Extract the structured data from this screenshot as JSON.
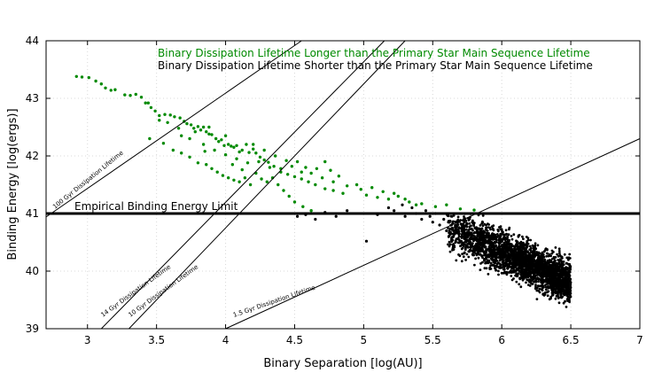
{
  "chart_data": {
    "type": "scatter",
    "title": "",
    "xlabel": "Binary Separation [log(AU)]",
    "ylabel": "Binding Energy [log(ergs)]",
    "xlim": [
      2.7,
      7
    ],
    "ylim": [
      39,
      44
    ],
    "xticks": [
      "3",
      "3.5",
      "4",
      "4.5",
      "5",
      "5.5",
      "6",
      "6.5",
      "7"
    ],
    "yticks": [
      "39",
      "40",
      "41",
      "42",
      "43",
      "44"
    ],
    "grid": true,
    "legend_position": "top",
    "series": [
      {
        "name": "Binary Dissipation Lifetime Longer than the Primary Star Main Sequence Lifetime",
        "color": "#008a00",
        "points": [
          [
            2.92,
            43.38
          ],
          [
            2.96,
            43.37
          ],
          [
            3.01,
            43.36
          ],
          [
            3.06,
            43.3
          ],
          [
            3.1,
            43.25
          ],
          [
            3.13,
            43.18
          ],
          [
            3.17,
            43.14
          ],
          [
            3.2,
            43.15
          ],
          [
            3.27,
            43.06
          ],
          [
            3.31,
            43.05
          ],
          [
            3.35,
            43.07
          ],
          [
            3.39,
            43.02
          ],
          [
            3.42,
            42.92
          ],
          [
            3.44,
            42.92
          ],
          [
            3.46,
            42.84
          ],
          [
            3.49,
            42.78
          ],
          [
            3.52,
            42.7
          ],
          [
            3.56,
            42.72
          ],
          [
            3.6,
            42.71
          ],
          [
            3.63,
            42.68
          ],
          [
            3.67,
            42.66
          ],
          [
            3.7,
            42.6
          ],
          [
            3.72,
            42.56
          ],
          [
            3.75,
            42.54
          ],
          [
            3.77,
            42.48
          ],
          [
            3.8,
            42.51
          ],
          [
            3.82,
            42.45
          ],
          [
            3.84,
            42.5
          ],
          [
            3.86,
            42.42
          ],
          [
            3.88,
            42.38
          ],
          [
            3.9,
            42.37
          ],
          [
            3.93,
            42.3
          ],
          [
            3.95,
            42.25
          ],
          [
            3.97,
            42.28
          ],
          [
            3.99,
            42.18
          ],
          [
            4.02,
            42.2
          ],
          [
            4.04,
            42.17
          ],
          [
            4.06,
            42.15
          ],
          [
            4.08,
            42.18
          ],
          [
            4.1,
            42.07
          ],
          [
            4.12,
            42.1
          ],
          [
            4.15,
            42.2
          ],
          [
            4.17,
            42.06
          ],
          [
            4.2,
            42.12
          ],
          [
            4.22,
            42.05
          ],
          [
            4.25,
            41.98
          ],
          [
            4.28,
            41.93
          ],
          [
            4.31,
            41.89
          ],
          [
            4.35,
            41.82
          ],
          [
            4.4,
            41.72
          ],
          [
            4.45,
            41.68
          ],
          [
            4.5,
            41.64
          ],
          [
            4.55,
            41.6
          ],
          [
            4.6,
            41.55
          ],
          [
            4.65,
            41.5
          ],
          [
            4.72,
            41.43
          ],
          [
            4.78,
            41.4
          ],
          [
            4.85,
            41.35
          ],
          [
            4.95,
            41.5
          ],
          [
            5.02,
            41.32
          ],
          [
            5.1,
            41.28
          ],
          [
            5.18,
            41.25
          ],
          [
            5.25,
            41.3
          ],
          [
            5.33,
            41.2
          ],
          [
            5.42,
            41.17
          ],
          [
            5.52,
            41.12
          ],
          [
            5.6,
            41.15
          ],
          [
            5.7,
            41.08
          ],
          [
            5.8,
            41.06
          ],
          [
            3.55,
            42.22
          ],
          [
            3.62,
            42.1
          ],
          [
            3.68,
            42.05
          ],
          [
            3.74,
            41.98
          ],
          [
            3.8,
            41.88
          ],
          [
            3.86,
            41.85
          ],
          [
            3.9,
            41.78
          ],
          [
            3.94,
            41.72
          ],
          [
            3.98,
            41.66
          ],
          [
            4.02,
            41.62
          ],
          [
            4.06,
            41.58
          ],
          [
            4.1,
            41.55
          ],
          [
            4.14,
            41.62
          ],
          [
            4.18,
            41.5
          ],
          [
            4.22,
            41.7
          ],
          [
            4.26,
            41.6
          ],
          [
            4.3,
            41.55
          ],
          [
            4.34,
            41.62
          ],
          [
            4.38,
            41.5
          ],
          [
            4.42,
            41.4
          ],
          [
            4.46,
            41.3
          ],
          [
            4.5,
            41.2
          ],
          [
            4.56,
            41.12
          ],
          [
            4.62,
            41.05
          ],
          [
            3.68,
            42.35
          ],
          [
            3.74,
            42.3
          ],
          [
            3.84,
            42.2
          ],
          [
            3.92,
            42.1
          ],
          [
            4.0,
            42.02
          ],
          [
            4.08,
            41.95
          ],
          [
            4.16,
            41.88
          ],
          [
            4.24,
            41.9
          ],
          [
            4.32,
            41.8
          ],
          [
            4.4,
            41.78
          ],
          [
            4.48,
            41.82
          ],
          [
            4.55,
            41.72
          ],
          [
            4.62,
            41.7
          ],
          [
            4.7,
            41.62
          ],
          [
            4.78,
            41.55
          ],
          [
            4.88,
            41.48
          ],
          [
            4.98,
            41.42
          ],
          [
            5.06,
            41.45
          ],
          [
            5.14,
            41.38
          ],
          [
            5.22,
            41.35
          ],
          [
            5.3,
            41.25
          ],
          [
            5.38,
            41.15
          ],
          [
            3.45,
            42.3
          ],
          [
            3.52,
            42.62
          ],
          [
            3.58,
            42.58
          ],
          [
            3.66,
            42.48
          ],
          [
            3.78,
            42.42
          ],
          [
            3.85,
            42.08
          ],
          [
            3.88,
            42.5
          ],
          [
            4.0,
            42.35
          ],
          [
            4.05,
            41.85
          ],
          [
            4.12,
            41.76
          ],
          [
            4.2,
            42.2
          ],
          [
            4.28,
            42.1
          ],
          [
            4.36,
            42.0
          ],
          [
            4.44,
            41.92
          ],
          [
            4.52,
            41.9
          ],
          [
            4.58,
            41.8
          ],
          [
            4.66,
            41.78
          ],
          [
            4.72,
            41.9
          ],
          [
            4.76,
            41.75
          ],
          [
            4.82,
            41.65
          ]
        ]
      },
      {
        "name": "Binary Dissipation Lifetime Shorter than the Primary Star Main Sequence Lifetime",
        "color": "#000000",
        "points": [
          [
            4.52,
            40.95
          ],
          [
            4.58,
            40.98
          ],
          [
            4.65,
            40.9
          ],
          [
            4.72,
            41.02
          ],
          [
            4.8,
            40.95
          ],
          [
            4.88,
            41.05
          ],
          [
            5.02,
            40.52
          ],
          [
            5.1,
            40.98
          ],
          [
            5.18,
            41.1
          ],
          [
            5.22,
            41.05
          ],
          [
            5.28,
            41.15
          ],
          [
            5.3,
            40.95
          ],
          [
            5.35,
            41.1
          ],
          [
            5.38,
            41.0
          ],
          [
            5.42,
            40.9
          ],
          [
            5.45,
            41.05
          ],
          [
            5.48,
            40.95
          ],
          [
            5.5,
            40.85
          ],
          [
            5.52,
            41.0
          ],
          [
            5.55,
            40.8
          ],
          [
            5.58,
            40.9
          ],
          [
            5.6,
            40.7
          ],
          [
            5.62,
            40.85
          ],
          [
            5.65,
            40.6
          ]
        ]
      }
    ],
    "lines": [
      {
        "label": "100 Gyr Dissipation Lifetime",
        "x": [
          2.7,
          4.55
        ],
        "y": [
          40.94,
          44.0
        ]
      },
      {
        "label": "14 Gyr Dissipation Lifetime",
        "x": [
          3.1,
          5.15
        ],
        "y": [
          39.0,
          44.0
        ]
      },
      {
        "label": "10 Gyr Dissipation Lifetime",
        "x": [
          3.3,
          5.3
        ],
        "y": [
          39.0,
          44.0
        ]
      },
      {
        "label": "1.5 Gyr Dissipation Lifetime",
        "x": [
          4.0,
          7.0
        ],
        "y": [
          39.0,
          42.3
        ]
      }
    ],
    "hline": {
      "label": "Empirical Binding Energy Limit",
      "y": 41.0
    }
  }
}
